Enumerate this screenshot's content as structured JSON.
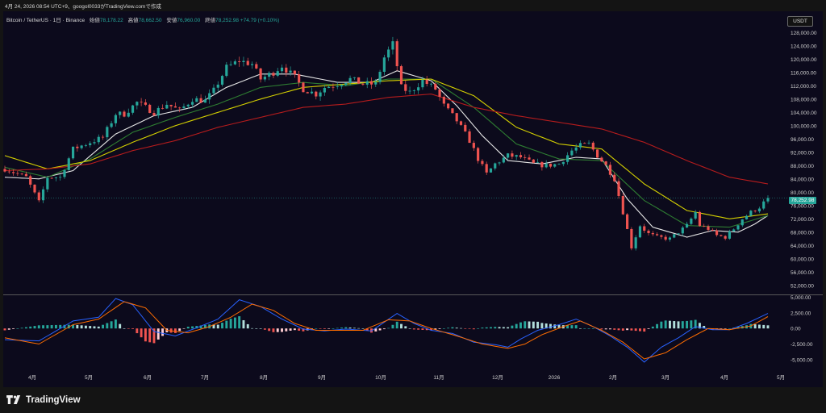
{
  "header": {
    "text": "4月 24, 2026 08:54 UTC+9、googol0033がTradingView.comで作成"
  },
  "legend": {
    "symbol": "Bitcoin / TetherUS · 1日 · Binance",
    "open_label": "始値",
    "open_value": "78,178.22",
    "high_label": "高値",
    "high_value": "78,662.50",
    "low_label": "安値",
    "low_value": "76,960.00",
    "close_label": "終値",
    "close_value": "78,252.98",
    "change_value": "+74.79 (+0.10%)"
  },
  "currency_button": {
    "label": "USDT"
  },
  "last_price_label": "78,252.98",
  "brand": {
    "text": "TradingView"
  },
  "colors": {
    "up": "#26a69a",
    "down": "#ef5350",
    "ma_short": "#e6e6e6",
    "ma_mid": "#2e7d32",
    "ma_long": "#d4d000",
    "ma_200": "#b71c1c",
    "macd_line": "#2962ff",
    "signal_line": "#ff6d00",
    "background": "#0c0a1c"
  },
  "chart_data": [
    {
      "type": "candlestick",
      "title": "",
      "x_tick_labels": [
        "4月",
        "5月",
        "6月",
        "7月",
        "8月",
        "9月",
        "10月",
        "11月",
        "12月",
        "2026",
        "2月",
        "3月",
        "4月",
        "5月"
      ],
      "y_tick_labels": [
        "128,000.00",
        "124,000.00",
        "120,000.00",
        "116,000.00",
        "112,000.00",
        "108,000.00",
        "104,000.00",
        "100,000.00",
        "96,000.00",
        "92,000.00",
        "88,000.00",
        "84,000.00",
        "80,000.00",
        "76,000.00",
        "72,000.00",
        "68,000.00",
        "64,000.00",
        "60,000.00",
        "56,000.00",
        "52,000.00"
      ],
      "ylim": [
        50500,
        130000
      ],
      "candle_interval_days": 3,
      "close_path": [
        [
          0,
          87000
        ],
        [
          2,
          86000
        ],
        [
          5,
          84500
        ],
        [
          8,
          77000
        ],
        [
          10,
          84500
        ],
        [
          13,
          84500
        ],
        [
          16,
          93000
        ],
        [
          20,
          95000
        ],
        [
          23,
          96500
        ],
        [
          26,
          103500
        ],
        [
          28,
          103500
        ],
        [
          31,
          107000
        ],
        [
          35,
          104000
        ],
        [
          38,
          106500
        ],
        [
          41,
          104500
        ],
        [
          44,
          108000
        ],
        [
          47,
          107500
        ],
        [
          49,
          110500
        ],
        [
          52,
          117500
        ],
        [
          55,
          119500
        ],
        [
          58,
          118500
        ],
        [
          60,
          114000
        ],
        [
          63,
          116000
        ],
        [
          65,
          118000
        ],
        [
          68,
          114500
        ],
        [
          70,
          111000
        ],
        [
          73,
          109500
        ],
        [
          75,
          111500
        ],
        [
          78,
          112500
        ],
        [
          81,
          114000
        ],
        [
          84,
          112500
        ],
        [
          87,
          112500
        ],
        [
          89,
          120500
        ],
        [
          91,
          124500
        ],
        [
          93,
          111500
        ],
        [
          95,
          110000
        ],
        [
          98,
          113500
        ],
        [
          101,
          111000
        ],
        [
          103,
          106000
        ],
        [
          106,
          101500
        ],
        [
          109,
          95500
        ],
        [
          111,
          90000
        ],
        [
          113,
          85500
        ],
        [
          115,
          88500
        ],
        [
          118,
          91000
        ],
        [
          121,
          90500
        ],
        [
          124,
          88500
        ],
        [
          127,
          88000
        ],
        [
          130,
          88500
        ],
        [
          133,
          92500
        ],
        [
          135,
          94000
        ],
        [
          137,
          94500
        ],
        [
          139,
          91000
        ],
        [
          141,
          88000
        ],
        [
          143,
          84000
        ],
        [
          145,
          74000
        ],
        [
          147,
          63500
        ],
        [
          149,
          70000
        ],
        [
          151,
          67500
        ],
        [
          153,
          66500
        ],
        [
          156,
          66000
        ],
        [
          158,
          68000
        ],
        [
          160,
          70000
        ],
        [
          162,
          74000
        ],
        [
          163,
          70000
        ],
        [
          165,
          69000
        ],
        [
          167,
          67000
        ],
        [
          169,
          66500
        ],
        [
          171,
          69000
        ],
        [
          173,
          72000
        ],
        [
          175,
          74000
        ],
        [
          177,
          75500
        ],
        [
          179,
          78253
        ]
      ],
      "moving_averages": [
        {
          "name": "",
          "color_key": "ma_short",
          "points": [
            [
              0,
              84500
            ],
            [
              8,
              84000
            ],
            [
              16,
              86500
            ],
            [
              26,
              97500
            ],
            [
              35,
              103000
            ],
            [
              44,
              105500
            ],
            [
              52,
              111500
            ],
            [
              60,
              115500
            ],
            [
              68,
              115500
            ],
            [
              78,
              113000
            ],
            [
              86,
              113000
            ],
            [
              92,
              116500
            ],
            [
              100,
              113500
            ],
            [
              106,
              106000
            ],
            [
              112,
              97000
            ],
            [
              118,
              89500
            ],
            [
              126,
              88500
            ],
            [
              134,
              90500
            ],
            [
              140,
              90000
            ],
            [
              146,
              78000
            ],
            [
              152,
              69500
            ],
            [
              160,
              66500
            ],
            [
              166,
              68500
            ],
            [
              172,
              68000
            ],
            [
              176,
              70500
            ],
            [
              179,
              73000
            ]
          ]
        },
        {
          "name": "",
          "color_key": "ma_mid",
          "points": [
            [
              0,
              87500
            ],
            [
              10,
              84500
            ],
            [
              20,
              90000
            ],
            [
              30,
              98000
            ],
            [
              40,
              102500
            ],
            [
              50,
              106500
            ],
            [
              60,
              111500
            ],
            [
              70,
              113000
            ],
            [
              80,
              112000
            ],
            [
              90,
              114000
            ],
            [
              100,
              114000
            ],
            [
              110,
              105500
            ],
            [
              120,
              94500
            ],
            [
              130,
              90000
            ],
            [
              140,
              89500
            ],
            [
              150,
              77500
            ],
            [
              160,
              70000
            ],
            [
              170,
              69500
            ],
            [
              179,
              73000
            ]
          ]
        },
        {
          "name": "",
          "color_key": "ma_long",
          "points": [
            [
              0,
              91000
            ],
            [
              10,
              87000
            ],
            [
              20,
              89500
            ],
            [
              30,
              95000
            ],
            [
              40,
              100000
            ],
            [
              50,
              104000
            ],
            [
              60,
              108000
            ],
            [
              70,
              111500
            ],
            [
              80,
              112500
            ],
            [
              90,
              113500
            ],
            [
              100,
              114000
            ],
            [
              110,
              109000
            ],
            [
              120,
              99500
            ],
            [
              130,
              94500
            ],
            [
              140,
              93000
            ],
            [
              150,
              82500
            ],
            [
              160,
              74500
            ],
            [
              170,
              72000
            ],
            [
              179,
              73500
            ]
          ]
        },
        {
          "name": "",
          "color_key": "ma_200",
          "points": [
            [
              0,
              86500
            ],
            [
              10,
              87000
            ],
            [
              20,
              88500
            ],
            [
              30,
              92500
            ],
            [
              40,
              95500
            ],
            [
              50,
              99500
            ],
            [
              60,
              102500
            ],
            [
              70,
              105500
            ],
            [
              80,
              106500
            ],
            [
              90,
              108500
            ],
            [
              100,
              109500
            ],
            [
              110,
              105500
            ],
            [
              120,
              103000
            ],
            [
              130,
              101000
            ],
            [
              140,
              99000
            ],
            [
              150,
              95000
            ],
            [
              160,
              89500
            ],
            [
              170,
              84500
            ],
            [
              179,
              82500
            ]
          ]
        }
      ]
    },
    {
      "type": "line",
      "title": "",
      "y_tick_labels": [
        "5,000.00",
        "2,500.00",
        "0.00",
        "-2,500.00",
        "-5,000.00"
      ],
      "ylim": [
        -5800,
        5200
      ],
      "series": [
        {
          "name": "",
          "color_key": "macd_line",
          "points": [
            [
              0,
              -1800
            ],
            [
              8,
              -2000
            ],
            [
              16,
              1200
            ],
            [
              22,
              1800
            ],
            [
              26,
              4800
            ],
            [
              30,
              3800
            ],
            [
              35,
              -500
            ],
            [
              40,
              -1200
            ],
            [
              45,
              100
            ],
            [
              50,
              1500
            ],
            [
              55,
              4600
            ],
            [
              60,
              3500
            ],
            [
              65,
              1500
            ],
            [
              70,
              -100
            ],
            [
              75,
              -400
            ],
            [
              80,
              -100
            ],
            [
              86,
              -400
            ],
            [
              92,
              2400
            ],
            [
              96,
              800
            ],
            [
              100,
              -300
            ],
            [
              105,
              -800
            ],
            [
              110,
              -2200
            ],
            [
              115,
              -2600
            ],
            [
              118,
              -3000
            ],
            [
              121,
              -1700
            ],
            [
              125,
              -300
            ],
            [
              130,
              600
            ],
            [
              134,
              1500
            ],
            [
              138,
              300
            ],
            [
              142,
              -1200
            ],
            [
              146,
              -3000
            ],
            [
              150,
              -5400
            ],
            [
              154,
              -3000
            ],
            [
              158,
              -1500
            ],
            [
              162,
              300
            ],
            [
              166,
              -200
            ],
            [
              170,
              -200
            ],
            [
              174,
              800
            ],
            [
              179,
              2400
            ]
          ]
        },
        {
          "name": "",
          "color_key": "signal_line",
          "points": [
            [
              0,
              -1500
            ],
            [
              8,
              -2500
            ],
            [
              16,
              600
            ],
            [
              22,
              1500
            ],
            [
              28,
              4300
            ],
            [
              33,
              3300
            ],
            [
              38,
              -300
            ],
            [
              43,
              -700
            ],
            [
              48,
              300
            ],
            [
              53,
              1800
            ],
            [
              58,
              3900
            ],
            [
              63,
              2900
            ],
            [
              68,
              800
            ],
            [
              73,
              -300
            ],
            [
              78,
              -300
            ],
            [
              84,
              -300
            ],
            [
              90,
              1400
            ],
            [
              95,
              1200
            ],
            [
              100,
              0
            ],
            [
              106,
              -1200
            ],
            [
              112,
              -2500
            ],
            [
              118,
              -3200
            ],
            [
              122,
              -2500
            ],
            [
              126,
              -1000
            ],
            [
              131,
              300
            ],
            [
              135,
              1200
            ],
            [
              140,
              -300
            ],
            [
              145,
              -2200
            ],
            [
              150,
              -4900
            ],
            [
              155,
              -3900
            ],
            [
              160,
              -1800
            ],
            [
              165,
              0
            ],
            [
              170,
              -200
            ],
            [
              175,
              400
            ],
            [
              179,
              1900
            ]
          ]
        }
      ]
    }
  ]
}
